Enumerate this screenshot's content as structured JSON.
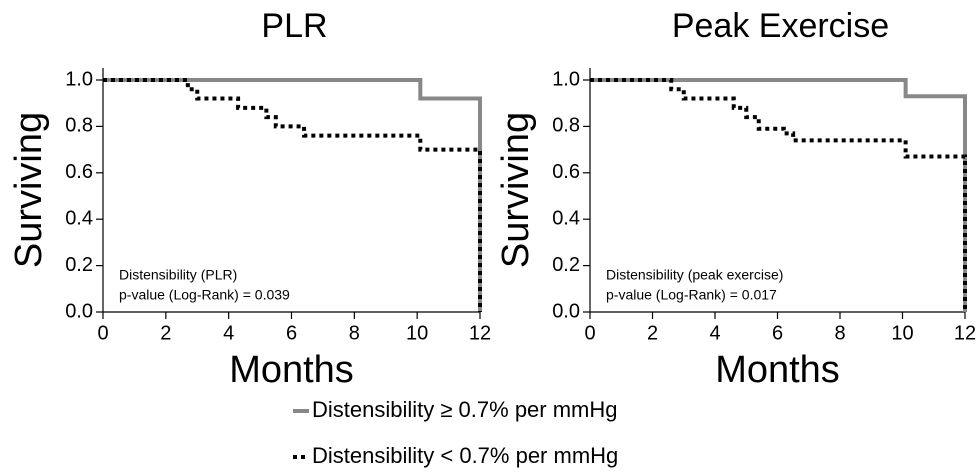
{
  "chart_data": [
    {
      "type": "line",
      "step": "post",
      "title": "PLR",
      "xlabel": "Months",
      "ylabel": "Surviving",
      "annotations": [
        "Distensibility (PLR)",
        "p-value (Log-Rank) = 0.039"
      ],
      "xlim": [
        0,
        12
      ],
      "ylim": [
        0,
        1
      ],
      "xticks": [
        0,
        2,
        4,
        6,
        8,
        10,
        12
      ],
      "yticks": [
        {
          "value": 0,
          "label": "0.0"
        },
        {
          "value": 0.2,
          "label": "0.2"
        },
        {
          "value": 0.4,
          "label": "0.4"
        },
        {
          "value": 0.6,
          "label": "0.6"
        },
        {
          "value": 0.8,
          "label": "0.8"
        },
        {
          "value": 1,
          "label": "1.0"
        }
      ],
      "series": [
        {
          "name": "Distensibility ≥ 0.7% per mmHg",
          "color": "#888888",
          "line_style": "solid",
          "x": [
            0,
            10.1,
            12
          ],
          "values": [
            1.0,
            0.92,
            0.0
          ]
        },
        {
          "name": "Distensibility < 0.7% per mmHg",
          "color": "#000000",
          "line_style": "dotted",
          "x": [
            0,
            2.7,
            3.0,
            4.3,
            5.2,
            5.5,
            6.4,
            10.1,
            12
          ],
          "values": [
            1.0,
            0.96,
            0.92,
            0.88,
            0.84,
            0.8,
            0.76,
            0.7,
            0.0
          ]
        }
      ]
    },
    {
      "type": "line",
      "step": "post",
      "title": "Peak Exercise",
      "xlabel": "Months",
      "ylabel": "Surviving",
      "annotations": [
        "Distensibility (peak exercise)",
        "p-value (Log-Rank) = 0.017"
      ],
      "xlim": [
        0,
        12
      ],
      "ylim": [
        0,
        1
      ],
      "xticks": [
        0,
        2,
        4,
        6,
        8,
        10,
        12
      ],
      "yticks": [
        {
          "value": 0,
          "label": "0.0"
        },
        {
          "value": 0.2,
          "label": "0.2"
        },
        {
          "value": 0.4,
          "label": "0.4"
        },
        {
          "value": 0.6,
          "label": "0.6"
        },
        {
          "value": 0.8,
          "label": "0.8"
        },
        {
          "value": 1,
          "label": "1.0"
        }
      ],
      "series": [
        {
          "name": "Distensibility ≥ 0.7% per mmHg",
          "color": "#888888",
          "line_style": "solid",
          "x": [
            0,
            10.1,
            12
          ],
          "values": [
            1.0,
            0.93,
            0.0
          ]
        },
        {
          "name": "Distensibility < 0.7% per mmHg",
          "color": "#000000",
          "line_style": "dotted",
          "x": [
            0,
            2.6,
            3.0,
            4.6,
            5.0,
            5.4,
            6.2,
            6.5,
            10.1,
            12
          ],
          "values": [
            1.0,
            0.96,
            0.92,
            0.88,
            0.84,
            0.79,
            0.77,
            0.74,
            0.67,
            0.0
          ]
        }
      ]
    }
  ]
}
